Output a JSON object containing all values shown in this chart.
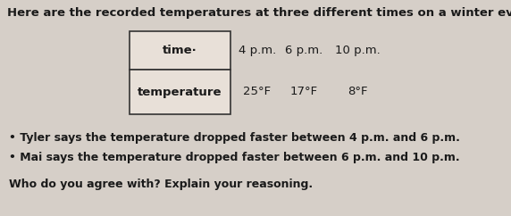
{
  "title": "Here are the recorded temperatures at three different times on a winter evening.",
  "title_fontsize": 9.5,
  "table_header": "time·",
  "table_row2": "temperature",
  "times": [
    "4 p.m.",
    "6 p.m.",
    "10 p.m."
  ],
  "temps": [
    "25°F",
    "17°F",
    "8°F"
  ],
  "bullet1": "Tyler says the temperature dropped faster between 4 p.m. and 6 p.m.",
  "bullet2": "Mai says the temperature dropped faster between 6 p.m. and 10 p.m.",
  "question": "Who do you agree with? Explain your reasoning.",
  "bg_color": "#d6cfc8",
  "box_fill": "#e8e0d8",
  "text_color": "#1a1a1a"
}
